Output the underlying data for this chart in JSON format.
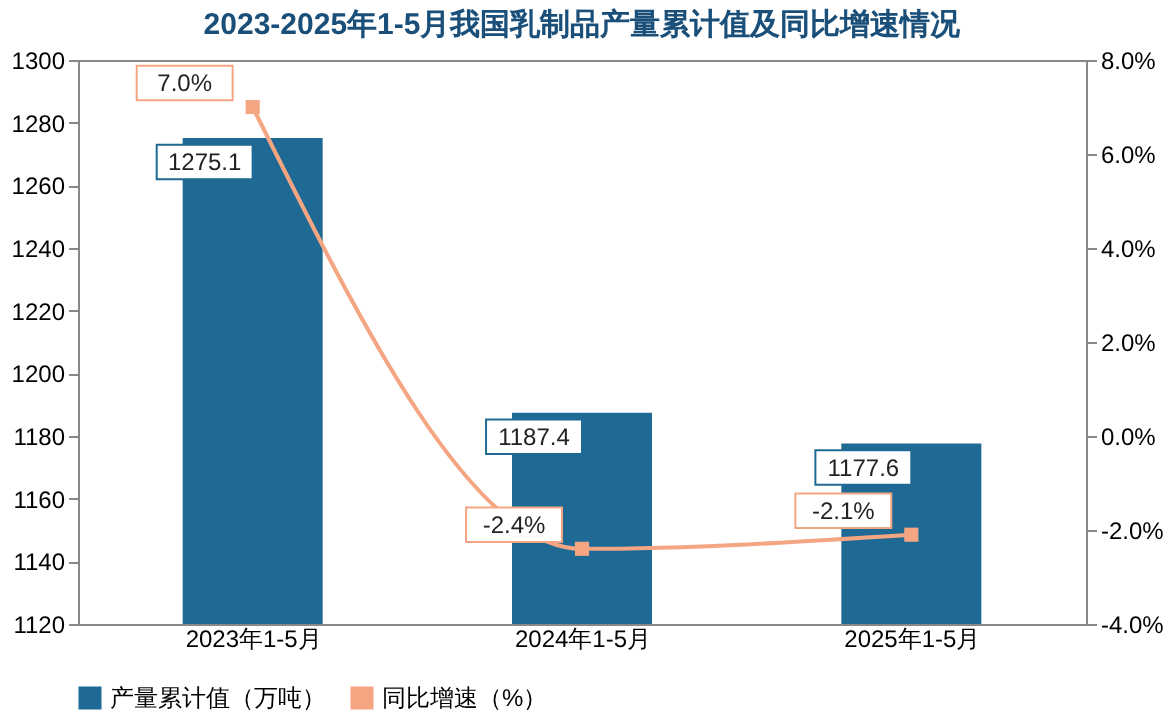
{
  "chart_data": {
    "type": "bar",
    "title": "2023-2025年1-5月我国乳制品产量累计值及同比增速情况",
    "categories": [
      "2023年1-5月",
      "2024年1-5月",
      "2025年1-5月"
    ],
    "series": [
      {
        "name": "产量累计值（万吨）",
        "type": "bar",
        "color": "#1f6a94",
        "values": [
          1275.1,
          1187.4,
          1177.6
        ],
        "value_labels": [
          "1275.1",
          "1187.4",
          "1177.6"
        ]
      },
      {
        "name": "同比增速（%）",
        "type": "line",
        "axis": "y2",
        "color": "#f4a582",
        "values": [
          7.0,
          -2.4,
          -2.1
        ],
        "value_labels": [
          "7.0%",
          "-2.4%",
          "-2.1%"
        ],
        "marker": "square"
      }
    ],
    "ylim": [
      1120,
      1300
    ],
    "yticks": [
      1120,
      1140,
      1160,
      1180,
      1200,
      1220,
      1240,
      1260,
      1280,
      1300
    ],
    "y2lim": [
      -4,
      8
    ],
    "y2ticks": [
      {
        "value": -4,
        "label": "-4.0%"
      },
      {
        "value": -2,
        "label": "-2.0%"
      },
      {
        "value": 0,
        "label": "0.0%"
      },
      {
        "value": 2,
        "label": "2.0%"
      },
      {
        "value": 4,
        "label": "4.0%"
      },
      {
        "value": 6,
        "label": "6.0%"
      },
      {
        "value": 8,
        "label": "8.0%"
      }
    ],
    "legend": "bottom"
  }
}
